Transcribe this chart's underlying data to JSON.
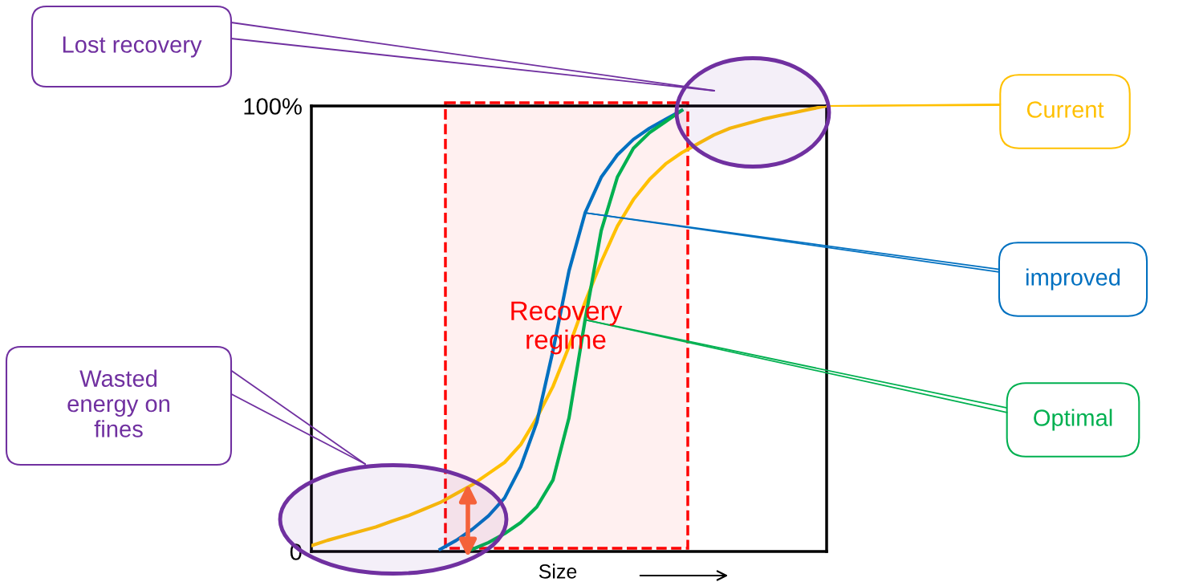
{
  "chart_data": {
    "type": "line",
    "xlabel": "Size",
    "categories": [
      null,
      null,
      null,
      null,
      null,
      null,
      null,
      null,
      null,
      null,
      null,
      null,
      null,
      null,
      null,
      null,
      null,
      null,
      null,
      null,
      null,
      null,
      null,
      null,
      null,
      null,
      null,
      null,
      null,
      null,
      null,
      null,
      null
    ],
    "series": [
      {
        "name": "Current",
        "color": "#ffc000",
        "values": [
          1.3,
          2.5,
          3.5,
          4.5,
          5.5,
          6.8,
          8,
          9.5,
          11,
          13,
          15,
          17.5,
          20,
          24,
          30,
          37,
          46,
          56,
          65,
          73,
          79,
          83.5,
          87,
          89.5,
          91.5,
          93.5,
          95,
          96,
          97,
          97.8,
          98.5,
          99.3,
          100
        ]
      },
      {
        "name": "improved",
        "color": "#0070c0",
        "values": [
          null,
          null,
          null,
          null,
          null,
          null,
          null,
          null,
          0.5,
          2.5,
          5,
          8,
          12,
          19,
          29,
          45,
          63,
          76,
          84,
          89,
          92.5,
          95,
          97,
          99,
          null,
          null,
          null,
          null,
          null,
          null,
          null,
          null,
          null
        ]
      },
      {
        "name": "Optimal",
        "color": "#00b050",
        "values": [
          null,
          null,
          null,
          null,
          null,
          null,
          null,
          null,
          null,
          null,
          0.5,
          2,
          4,
          6.5,
          10,
          16,
          30,
          52,
          72,
          84,
          90.5,
          94,
          96.5,
          99,
          null,
          null,
          null,
          null,
          null,
          null,
          null,
          null,
          null
        ]
      }
    ],
    "ylim": [
      0,
      100
    ],
    "yticks": [
      {
        "value": 0,
        "label": "0"
      },
      {
        "value": 100,
        "label": "100%"
      }
    ],
    "tick_labels": "y",
    "annotations": [
      "Lost recovery",
      "Wasted\nenergy on\nfines",
      "Recovery\nregime"
    ]
  }
}
